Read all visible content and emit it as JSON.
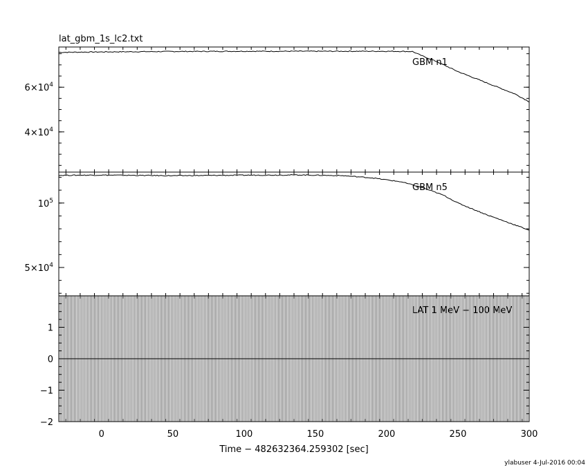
{
  "chart_data": {
    "type": "line",
    "title": "lat_gbm_1s_lc2.txt",
    "xlabel": "Time − 482632364.259302 [sec]",
    "xlim": [
      -30,
      300
    ],
    "x_ticks": [
      {
        "value": 0,
        "label": "0"
      },
      {
        "value": 50,
        "label": "50"
      },
      {
        "value": 100,
        "label": "100"
      },
      {
        "value": 150,
        "label": "150"
      },
      {
        "value": 200,
        "label": "200"
      },
      {
        "value": 250,
        "label": "250"
      },
      {
        "value": 300,
        "label": "300"
      }
    ],
    "footer": "ylabuser  4-Jul-2016 00:04",
    "panels": [
      {
        "name": "GBM n1",
        "ylim": [
          22000,
          78000
        ],
        "y_ticks": [
          {
            "value": 40000,
            "mantissa": "4×10",
            "exp": "4"
          },
          {
            "value": 60000,
            "mantissa": "6×10",
            "exp": "4"
          }
        ],
        "series": [
          {
            "x": [
              -30,
              0,
              50,
              100,
              150,
              200,
              218,
              225,
              235,
              250,
              270,
              290,
              300
            ],
            "y": [
              75600,
              75800,
              76000,
              76100,
              76100,
              76100,
              76000,
              74000,
              71500,
              67000,
              62000,
              57000,
              53500
            ]
          }
        ]
      },
      {
        "name": "GBM n5",
        "ylim": [
          28000,
          124000
        ],
        "y_ticks": [
          {
            "value": 50000,
            "mantissa": "5×10",
            "exp": "4"
          },
          {
            "value": 100000,
            "mantissa": "10",
            "exp": "5"
          }
        ],
        "series": [
          {
            "x": [
              -30,
              0,
              50,
              100,
              140,
              170,
              190,
              210,
              225,
              240,
              250,
              270,
              290,
              300
            ],
            "y": [
              121500,
              121700,
              121200,
              121600,
              121800,
              121200,
              119500,
              116500,
              112000,
              106000,
              100000,
              91000,
              83000,
              79000
            ]
          }
        ]
      },
      {
        "name": "LAT 1 MeV − 100 MeV",
        "ylim": [
          -2,
          2
        ],
        "y_ticks": [
          {
            "value": -2,
            "label": "−2"
          },
          {
            "value": -1,
            "label": "−1"
          },
          {
            "value": 0,
            "label": "0"
          },
          {
            "value": 1,
            "label": "1"
          }
        ],
        "series": [
          {
            "x": [
              -30,
              300
            ],
            "y": [
              0,
              0
            ],
            "dense_error_bars": true
          }
        ]
      }
    ]
  }
}
